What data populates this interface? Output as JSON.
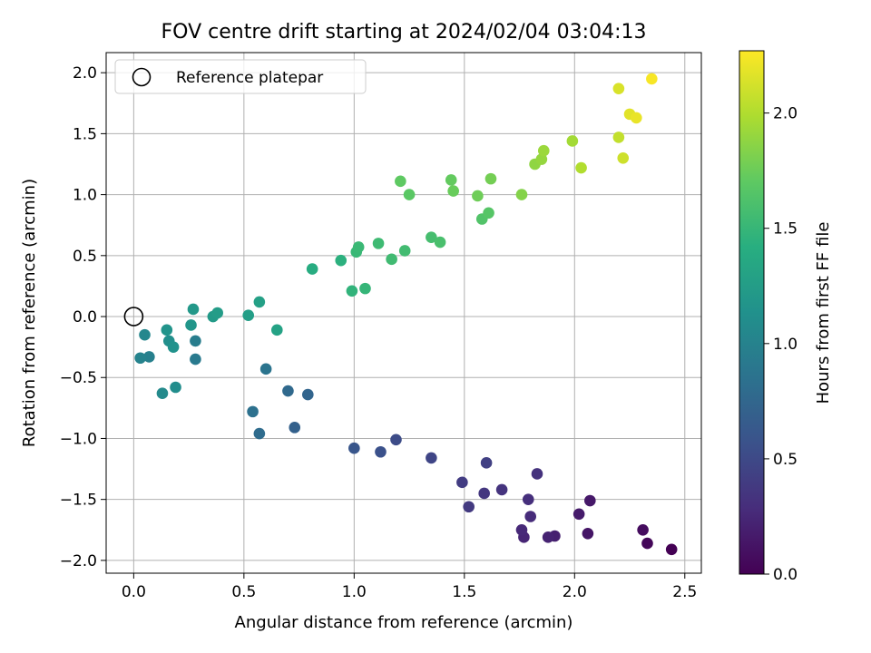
{
  "chart_data": {
    "type": "scatter",
    "title": "FOV centre drift starting at 2024/02/04 03:04:13",
    "xlabel": "Angular distance from reference (arcmin)",
    "ylabel": "Rotation from reference (arcmin)",
    "xlim": [
      -0.125,
      2.575
    ],
    "ylim": [
      -2.105,
      2.165
    ],
    "xticks": [
      0.0,
      0.5,
      1.0,
      1.5,
      2.0,
      2.5
    ],
    "xtick_labels": [
      "0.0",
      "0.5",
      "1.0",
      "1.5",
      "2.0",
      "2.5"
    ],
    "yticks": [
      -2.0,
      -1.5,
      -1.0,
      -0.5,
      0.0,
      0.5,
      1.0,
      1.5,
      2.0
    ],
    "ytick_labels": [
      "−2.0",
      "−1.5",
      "−1.0",
      "−0.5",
      "0.0",
      "0.5",
      "1.0",
      "1.5",
      "2.0"
    ],
    "grid": true,
    "legend": {
      "position": "top-left",
      "entries": [
        "Reference platepar"
      ]
    },
    "reference_point": {
      "x": 0.0,
      "y": 0.0
    },
    "colorbar": {
      "label": "Hours from first FF file",
      "colormap": "viridis",
      "range": [
        0.0,
        2.27
      ],
      "ticks": [
        0.0,
        0.5,
        1.0,
        1.5,
        2.0
      ],
      "tick_labels": [
        "0.0",
        "0.5",
        "1.0",
        "1.5",
        "2.0"
      ]
    },
    "points": [
      {
        "x": 2.44,
        "y": -1.91,
        "c": 0.0
      },
      {
        "x": 2.33,
        "y": -1.86,
        "c": 0.04
      },
      {
        "x": 2.31,
        "y": -1.75,
        "c": 0.07
      },
      {
        "x": 2.06,
        "y": -1.78,
        "c": 0.13
      },
      {
        "x": 2.07,
        "y": -1.51,
        "c": 0.15
      },
      {
        "x": 2.02,
        "y": -1.62,
        "c": 0.17
      },
      {
        "x": 1.91,
        "y": -1.8,
        "c": 0.2
      },
      {
        "x": 1.88,
        "y": -1.81,
        "c": 0.22
      },
      {
        "x": 1.77,
        "y": -1.81,
        "c": 0.24
      },
      {
        "x": 1.76,
        "y": -1.75,
        "c": 0.26
      },
      {
        "x": 1.8,
        "y": -1.64,
        "c": 0.28
      },
      {
        "x": 1.79,
        "y": -1.5,
        "c": 0.3
      },
      {
        "x": 1.83,
        "y": -1.29,
        "c": 0.32
      },
      {
        "x": 1.67,
        "y": -1.42,
        "c": 0.34
      },
      {
        "x": 1.59,
        "y": -1.45,
        "c": 0.36
      },
      {
        "x": 1.52,
        "y": -1.56,
        "c": 0.38
      },
      {
        "x": 1.49,
        "y": -1.36,
        "c": 0.4
      },
      {
        "x": 1.6,
        "y": -1.2,
        "c": 0.43
      },
      {
        "x": 1.35,
        "y": -1.16,
        "c": 0.47
      },
      {
        "x": 1.19,
        "y": -1.01,
        "c": 0.52
      },
      {
        "x": 1.12,
        "y": -1.11,
        "c": 0.56
      },
      {
        "x": 1.0,
        "y": -1.08,
        "c": 0.6
      },
      {
        "x": 0.73,
        "y": -0.91,
        "c": 0.7
      },
      {
        "x": 0.79,
        "y": -0.64,
        "c": 0.74
      },
      {
        "x": 0.7,
        "y": -0.61,
        "c": 0.77
      },
      {
        "x": 0.57,
        "y": -0.96,
        "c": 0.8
      },
      {
        "x": 0.54,
        "y": -0.78,
        "c": 0.84
      },
      {
        "x": 0.6,
        "y": -0.43,
        "c": 0.87
      },
      {
        "x": 0.28,
        "y": -0.35,
        "c": 0.92
      },
      {
        "x": 0.28,
        "y": -0.2,
        "c": 0.95
      },
      {
        "x": 0.07,
        "y": -0.33,
        "c": 0.98
      },
      {
        "x": 0.03,
        "y": -0.34,
        "c": 1.01
      },
      {
        "x": 0.05,
        "y": -0.15,
        "c": 1.04
      },
      {
        "x": 0.13,
        "y": -0.63,
        "c": 1.07
      },
      {
        "x": 0.19,
        "y": -0.58,
        "c": 1.1
      },
      {
        "x": 0.16,
        "y": -0.2,
        "c": 1.12
      },
      {
        "x": 0.18,
        "y": -0.25,
        "c": 1.14
      },
      {
        "x": 0.15,
        "y": -0.11,
        "c": 1.16
      },
      {
        "x": 0.26,
        "y": -0.07,
        "c": 1.18
      },
      {
        "x": 0.27,
        "y": 0.06,
        "c": 1.2
      },
      {
        "x": 0.36,
        "y": 0.0,
        "c": 1.22
      },
      {
        "x": 0.38,
        "y": 0.03,
        "c": 1.24
      },
      {
        "x": 0.52,
        "y": 0.01,
        "c": 1.26
      },
      {
        "x": 0.57,
        "y": 0.12,
        "c": 1.28
      },
      {
        "x": 0.65,
        "y": -0.11,
        "c": 1.3
      },
      {
        "x": 0.81,
        "y": 0.39,
        "c": 1.4
      },
      {
        "x": 0.94,
        "y": 0.46,
        "c": 1.44
      },
      {
        "x": 0.99,
        "y": 0.21,
        "c": 1.47
      },
      {
        "x": 1.05,
        "y": 0.23,
        "c": 1.49
      },
      {
        "x": 1.01,
        "y": 0.53,
        "c": 1.51
      },
      {
        "x": 1.02,
        "y": 0.57,
        "c": 1.52
      },
      {
        "x": 1.11,
        "y": 0.6,
        "c": 1.54
      },
      {
        "x": 1.17,
        "y": 0.47,
        "c": 1.55
      },
      {
        "x": 1.23,
        "y": 0.54,
        "c": 1.56
      },
      {
        "x": 1.35,
        "y": 0.65,
        "c": 1.58
      },
      {
        "x": 1.39,
        "y": 0.61,
        "c": 1.6
      },
      {
        "x": 1.58,
        "y": 0.8,
        "c": 1.64
      },
      {
        "x": 1.61,
        "y": 0.85,
        "c": 1.66
      },
      {
        "x": 1.25,
        "y": 1.0,
        "c": 1.68
      },
      {
        "x": 1.21,
        "y": 1.11,
        "c": 1.7
      },
      {
        "x": 1.44,
        "y": 1.12,
        "c": 1.72
      },
      {
        "x": 1.45,
        "y": 1.03,
        "c": 1.74
      },
      {
        "x": 1.56,
        "y": 0.99,
        "c": 1.76
      },
      {
        "x": 1.62,
        "y": 1.13,
        "c": 1.78
      },
      {
        "x": 1.76,
        "y": 1.0,
        "c": 1.84
      },
      {
        "x": 1.82,
        "y": 1.25,
        "c": 1.88
      },
      {
        "x": 1.85,
        "y": 1.29,
        "c": 1.9
      },
      {
        "x": 1.86,
        "y": 1.36,
        "c": 1.92
      },
      {
        "x": 1.99,
        "y": 1.44,
        "c": 1.95
      },
      {
        "x": 2.03,
        "y": 1.22,
        "c": 2.0
      },
      {
        "x": 2.2,
        "y": 1.47,
        "c": 2.06
      },
      {
        "x": 2.22,
        "y": 1.3,
        "c": 2.1
      },
      {
        "x": 2.2,
        "y": 1.87,
        "c": 2.14
      },
      {
        "x": 2.25,
        "y": 1.66,
        "c": 2.17
      },
      {
        "x": 2.28,
        "y": 1.63,
        "c": 2.2
      },
      {
        "x": 2.35,
        "y": 1.95,
        "c": 2.25
      }
    ]
  }
}
